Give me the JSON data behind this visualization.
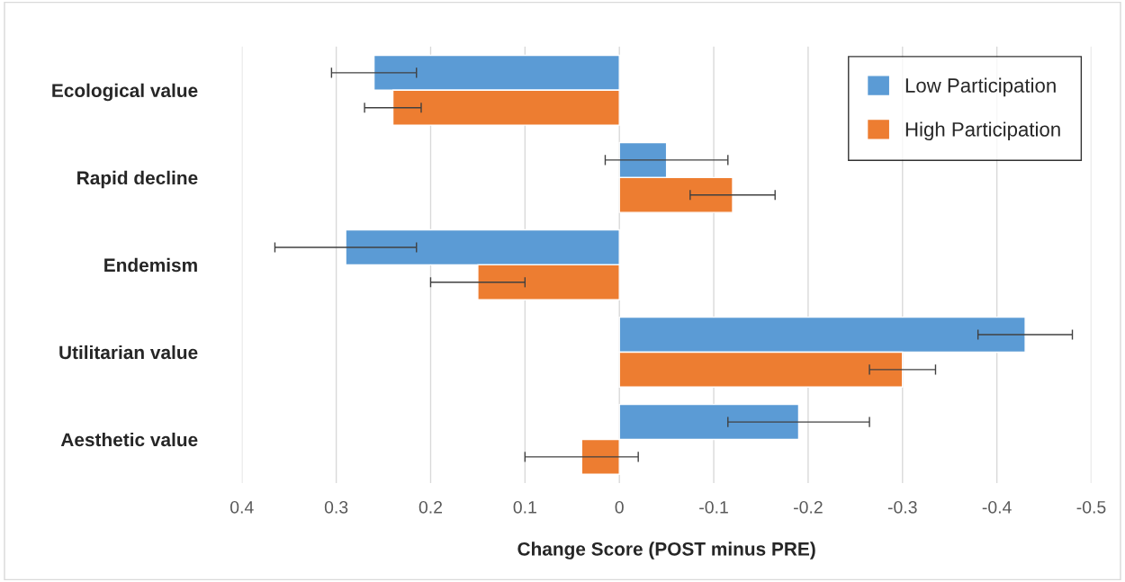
{
  "chart_data": {
    "type": "bar",
    "orientation": "horizontal",
    "categories": [
      "Ecological value",
      "Rapid decline",
      "Endemism",
      "Utilitarian value",
      "Aesthetic value"
    ],
    "series": [
      {
        "name": "Low Participation",
        "color": "#5b9bd5",
        "values": [
          0.26,
          -0.05,
          0.29,
          -0.43,
          -0.19
        ],
        "errors": [
          0.045,
          0.065,
          0.075,
          0.05,
          0.075
        ]
      },
      {
        "name": "High Participation",
        "color": "#ed7d31",
        "values": [
          0.24,
          -0.12,
          0.15,
          -0.3,
          0.04
        ],
        "errors": [
          0.03,
          0.045,
          0.05,
          0.035,
          0.06
        ]
      }
    ],
    "xlabel": "Change Score (POST minus PRE)",
    "xlim": [
      0.4,
      -0.5
    ],
    "xticks": [
      0.4,
      0.3,
      0.2,
      0.1,
      0,
      -0.1,
      -0.2,
      -0.3,
      -0.4,
      -0.5
    ],
    "grid": "x",
    "legend": "top right"
  }
}
